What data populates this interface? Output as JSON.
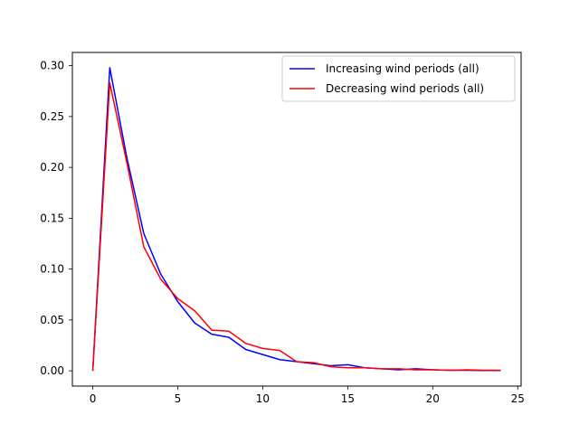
{
  "chart_data": {
    "type": "line",
    "title": "",
    "xlabel": "",
    "ylabel": "",
    "xlim": [
      -1.2,
      25.2
    ],
    "ylim": [
      -0.015,
      0.313
    ],
    "grid": false,
    "legend_position": "top-right",
    "x_ticks": [
      0,
      5,
      10,
      15,
      20,
      25
    ],
    "x_tick_labels": [
      "0",
      "5",
      "10",
      "15",
      "20",
      "25"
    ],
    "y_ticks": [
      0.0,
      0.05,
      0.1,
      0.15,
      0.2,
      0.25,
      0.3
    ],
    "y_tick_labels": [
      "0.00",
      "0.05",
      "0.10",
      "0.15",
      "0.20",
      "0.25",
      "0.30"
    ],
    "x": [
      0,
      1,
      2,
      3,
      4,
      5,
      6,
      7,
      8,
      9,
      10,
      11,
      12,
      13,
      14,
      15,
      16,
      17,
      18,
      19,
      20,
      21,
      22,
      23,
      24
    ],
    "series": [
      {
        "name": "Increasing wind periods (all)",
        "color": "#0000ff",
        "values": [
          0.0,
          0.298,
          0.21,
          0.135,
          0.095,
          0.068,
          0.047,
          0.036,
          0.033,
          0.021,
          0.016,
          0.011,
          0.009,
          0.007,
          0.005,
          0.006,
          0.003,
          0.002,
          0.001,
          0.002,
          0.001,
          0.0005,
          0.0005,
          0.0003,
          0.0003
        ]
      },
      {
        "name": "Decreasing wind periods (all)",
        "color": "#ff0000",
        "values": [
          0.0,
          0.283,
          0.205,
          0.122,
          0.09,
          0.071,
          0.059,
          0.04,
          0.039,
          0.027,
          0.022,
          0.02,
          0.009,
          0.008,
          0.004,
          0.003,
          0.003,
          0.002,
          0.002,
          0.001,
          0.001,
          0.0005,
          0.001,
          0.0005,
          0.0005
        ]
      }
    ]
  }
}
